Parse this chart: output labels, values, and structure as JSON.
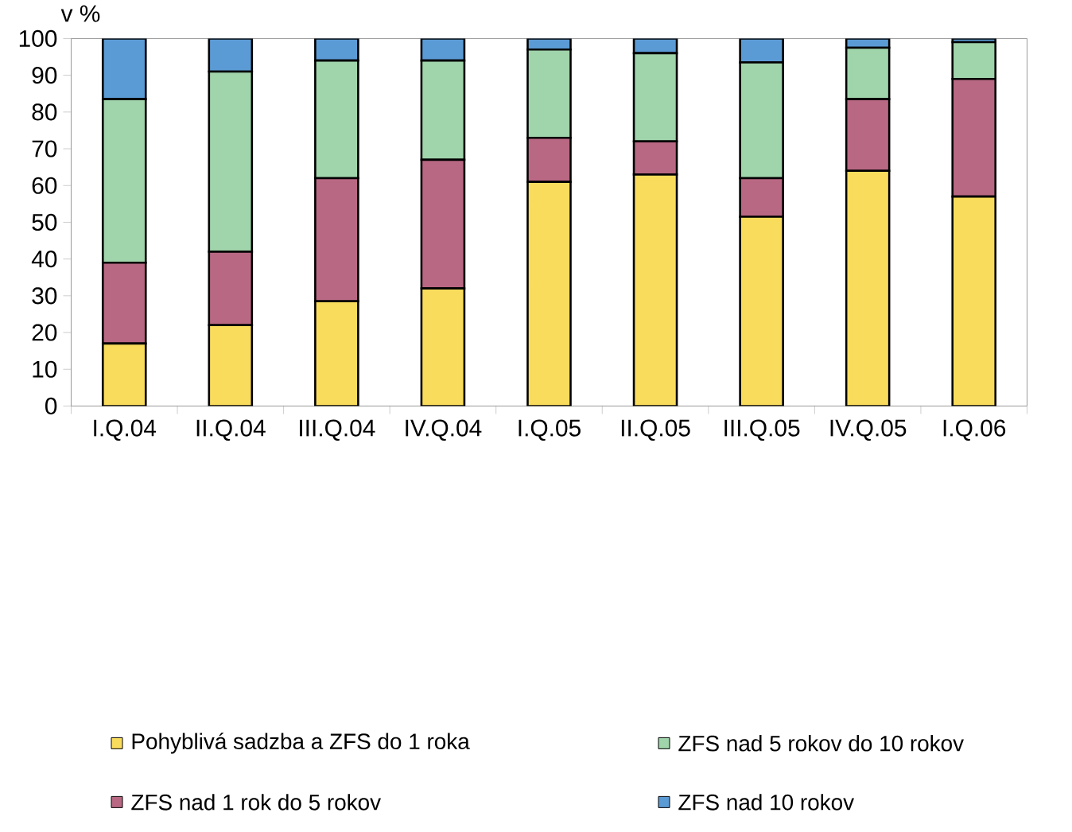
{
  "chart_data": {
    "type": "bar",
    "stacked": true,
    "ylabel": "v %",
    "categories": [
      "I.Q.04",
      "II.Q.04",
      "III.Q.04",
      "IV.Q.04",
      "I.Q.05",
      "II.Q.05",
      "III.Q.05",
      "IV.Q.05",
      "I.Q.06"
    ],
    "series": [
      {
        "name": "Pohyblivá sadzba a ZFS do 1 roka",
        "color": "#f9dc5c",
        "values": [
          17,
          22,
          28.5,
          32,
          61,
          63,
          51.5,
          64,
          57
        ]
      },
      {
        "name": "ZFS nad 1 rok do 5 rokov",
        "color": "#b96883",
        "values": [
          22,
          20,
          33.5,
          35,
          12,
          9,
          10.5,
          19.5,
          32
        ]
      },
      {
        "name": "ZFS nad 5 rokov do 10 rokov",
        "color": "#a0d4ab",
        "values": [
          44.5,
          49,
          32,
          27,
          24,
          24,
          31.5,
          14,
          10
        ]
      },
      {
        "name": "ZFS nad 10 rokov",
        "color": "#5b9bd5",
        "values": [
          16.5,
          9,
          6,
          6,
          3,
          4,
          6.5,
          2.5,
          1
        ]
      }
    ],
    "ylim": [
      0,
      100
    ],
    "yticks": [
      0,
      10,
      20,
      30,
      40,
      50,
      60,
      70,
      80,
      90,
      100
    ],
    "grid": false,
    "legend": "bottom"
  }
}
